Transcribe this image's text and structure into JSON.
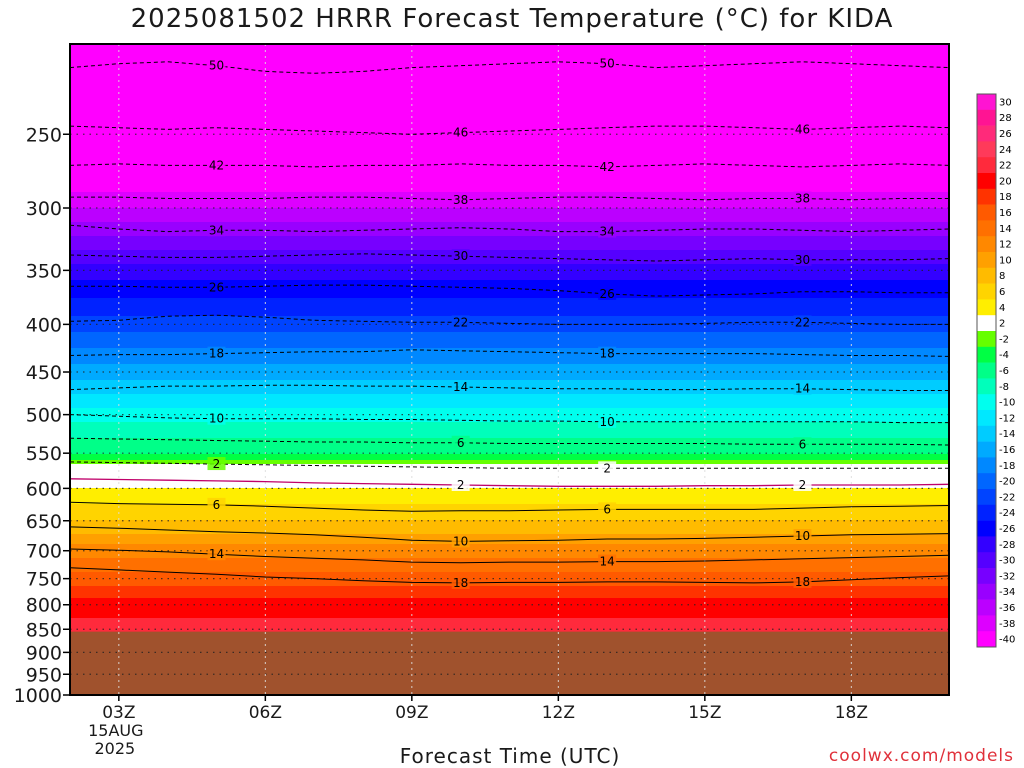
{
  "chart_data": {
    "type": "heatmap",
    "title": "2025081502 HRRR Forecast Temperature (°C) for KIDA",
    "xlabel": "Forecast Time (UTC)",
    "credit": "coolwx.com/models",
    "y_axis": {
      "scale": "pressure (hPa), inverted, log",
      "range": [
        1000,
        200
      ],
      "ticks": [
        250,
        300,
        350,
        400,
        450,
        500,
        550,
        600,
        650,
        700,
        750,
        800,
        850,
        900,
        950,
        1000
      ]
    },
    "x_axis": {
      "range": [
        "2025-08-15T02:00Z",
        "2025-08-15T20:00Z"
      ],
      "ticks": [
        {
          "hour": 3,
          "label": "03Z",
          "date_label": "15AUG",
          "year_label": "2025"
        },
        {
          "hour": 6,
          "label": "06Z"
        },
        {
          "hour": 9,
          "label": "09Z"
        },
        {
          "hour": 12,
          "label": "12Z"
        },
        {
          "hour": 15,
          "label": "15Z"
        },
        {
          "hour": 18,
          "label": "18Z"
        }
      ],
      "grid": true
    },
    "below_ground_pressure": 855,
    "below_ground_color": "#a0522d",
    "colorbar": {
      "position": "right",
      "labels": [
        "30",
        "28",
        "26",
        "24",
        "22",
        "20",
        "18",
        "16",
        "14",
        "12",
        "10",
        "8",
        "6",
        "4",
        "2",
        "-2",
        "-4",
        "-6",
        "-8",
        "-10",
        "-12",
        "-14",
        "-16",
        "-18",
        "-20",
        "-22",
        "-24",
        "-26",
        "-28",
        "-30",
        "-32",
        "-34",
        "-36",
        "-38",
        "-40"
      ],
      "colors": [
        "#ff14d2",
        "#ff1493",
        "#ff2a7a",
        "#ff3a5a",
        "#ff2a3c",
        "#ff0000",
        "#ff3300",
        "#ff5a00",
        "#ff7000",
        "#ff8800",
        "#ffa000",
        "#ffbb00",
        "#ffd400",
        "#ffee00",
        "#ffffff",
        "#66ff00",
        "#00ff44",
        "#00ff88",
        "#00ffbb",
        "#00ffee",
        "#00e8ff",
        "#00ccff",
        "#00aaff",
        "#0088ff",
        "#0066ff",
        "#0044ff",
        "#0022ff",
        "#0000ff",
        "#3300ff",
        "#5500ff",
        "#7700ff",
        "#9900ff",
        "#bb00ff",
        "#dd00ff",
        "#ff00ff"
      ]
    },
    "contours": [
      {
        "value": 50,
        "label": "50",
        "pressures": [
          212,
          210,
          209,
          211,
          214,
          215,
          214,
          212,
          211,
          210,
          209,
          210,
          212,
          211,
          210,
          209,
          210,
          211,
          212
        ]
      },
      {
        "value": 46,
        "label": "46",
        "pressures": [
          245,
          246,
          247,
          246,
          247,
          248,
          249,
          250,
          249,
          248,
          247,
          246,
          245,
          245,
          246,
          247,
          246,
          245,
          246
        ]
      },
      {
        "value": 42,
        "label": "42",
        "pressures": [
          270,
          269,
          270,
          270,
          270,
          271,
          270,
          270,
          269,
          270,
          270,
          271,
          270,
          269,
          270,
          271,
          270,
          269,
          270
        ]
      },
      {
        "value": 38,
        "label": "38",
        "pressures": [
          292,
          292,
          293,
          293,
          293,
          292,
          292,
          293,
          294,
          293,
          292,
          292,
          293,
          294,
          293,
          293,
          294,
          293,
          293
        ]
      },
      {
        "value": 34,
        "label": "34",
        "pressures": [
          313,
          316,
          318,
          317,
          317,
          318,
          317,
          316,
          315,
          316,
          318,
          318,
          317,
          316,
          316,
          317,
          318,
          317,
          316
        ]
      },
      {
        "value": 30,
        "label": "30",
        "pressures": [
          337,
          338,
          339,
          339,
          338,
          337,
          336,
          337,
          338,
          339,
          340,
          341,
          342,
          341,
          340,
          341,
          341,
          341,
          340
        ]
      },
      {
        "value": 26,
        "label": "26",
        "pressures": [
          364,
          364,
          365,
          365,
          364,
          363,
          363,
          364,
          365,
          366,
          368,
          371,
          373,
          372,
          371,
          369,
          369,
          370,
          370
        ]
      },
      {
        "value": 22,
        "label": "22",
        "pressures": [
          397,
          396,
          392,
          391,
          393,
          396,
          397,
          398,
          398,
          399,
          400,
          400,
          400,
          399,
          398,
          398,
          399,
          400,
          400
        ]
      },
      {
        "value": 18,
        "label": "18",
        "pressures": [
          432,
          431,
          431,
          430,
          429,
          428,
          428,
          426,
          427,
          428,
          429,
          430,
          430,
          430,
          430,
          431,
          432,
          432,
          433
        ]
      },
      {
        "value": 14,
        "label": "14",
        "pressures": [
          470,
          468,
          466,
          466,
          465,
          465,
          466,
          466,
          467,
          468,
          469,
          469,
          470,
          470,
          469,
          469,
          470,
          471,
          471
        ]
      },
      {
        "value": 10,
        "label": "10",
        "pressures": [
          500,
          502,
          504,
          505,
          505,
          505,
          506,
          506,
          507,
          508,
          508,
          509,
          509,
          509,
          509,
          509,
          509,
          510,
          510
        ]
      },
      {
        "value": 6,
        "label": "6",
        "pressures": [
          530,
          531,
          532,
          533,
          534,
          535,
          535,
          536,
          536,
          537,
          537,
          537,
          537,
          537,
          538,
          538,
          538,
          538,
          539
        ]
      },
      {
        "value": 2,
        "label": "2",
        "pressures": [
          562,
          563,
          564,
          565,
          566,
          567,
          568,
          569,
          570,
          571,
          571,
          571,
          571,
          571,
          571,
          571,
          571,
          571,
          571
        ]
      },
      {
        "value": -2,
        "label": "2",
        "pressures": [
          586,
          587,
          588,
          589,
          590,
          592,
          593,
          594,
          595,
          596,
          597,
          597,
          597,
          596,
          596,
          595,
          595,
          595,
          594
        ]
      },
      {
        "value": -6,
        "label": "6",
        "pressures": [
          621,
          623,
          624,
          625,
          627,
          630,
          633,
          635,
          634,
          634,
          633,
          632,
          632,
          632,
          632,
          630,
          628,
          627,
          626
        ]
      },
      {
        "value": -10,
        "label": "10",
        "pressures": [
          660,
          662,
          665,
          668,
          670,
          673,
          677,
          682,
          684,
          683,
          682,
          680,
          680,
          679,
          677,
          675,
          673,
          672,
          671
        ]
      },
      {
        "value": -14,
        "label": "14",
        "pressures": [
          697,
          699,
          702,
          706,
          710,
          713,
          716,
          720,
          721,
          720,
          720,
          719,
          719,
          718,
          716,
          714,
          712,
          710,
          708
        ]
      },
      {
        "value": -18,
        "label": "18",
        "pressures": [
          730,
          734,
          738,
          742,
          747,
          750,
          754,
          757,
          758,
          757,
          757,
          756,
          756,
          757,
          758,
          756,
          752,
          748,
          745
        ]
      }
    ],
    "shading_levels": [
      {
        "p": 200,
        "t": -52
      },
      {
        "p": 250,
        "t": -46
      },
      {
        "p": 300,
        "t": -37
      },
      {
        "p": 350,
        "t": -28
      },
      {
        "p": 400,
        "t": -22
      },
      {
        "p": 450,
        "t": -16
      },
      {
        "p": 500,
        "t": -10
      },
      {
        "p": 550,
        "t": -5
      },
      {
        "p": 575,
        "t": 0
      },
      {
        "p": 600,
        "t": 3
      },
      {
        "p": 650,
        "t": 7
      },
      {
        "p": 700,
        "t": 12
      },
      {
        "p": 750,
        "t": 16
      },
      {
        "p": 800,
        "t": 20
      },
      {
        "p": 850,
        "t": 22
      }
    ]
  }
}
